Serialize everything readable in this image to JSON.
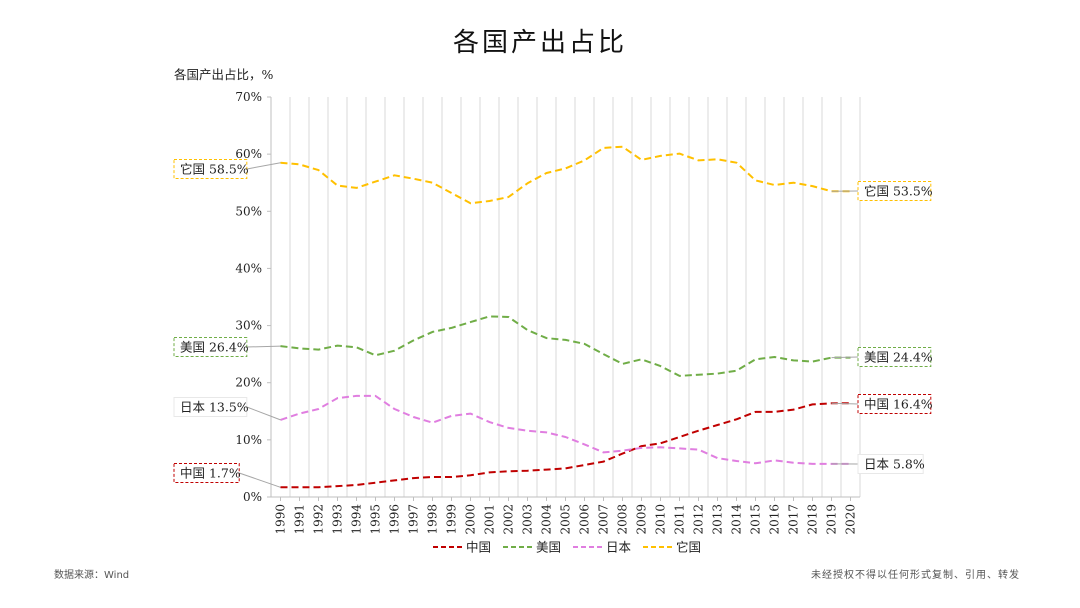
{
  "title": "各国产出占比",
  "y_unit_label": "各国产出占比，%",
  "source": "数据来源：Wind",
  "copyright": "未经授权不得以任何形式复制、引用、转发",
  "chart_data": {
    "type": "line",
    "title": "各国产出占比",
    "ylabel": "各国产出占比，%",
    "ylim": [
      0,
      70
    ],
    "y_ticks": [
      "0%",
      "10%",
      "20%",
      "30%",
      "40%",
      "50%",
      "60%",
      "70%"
    ],
    "x": [
      "1990",
      "1991",
      "1992",
      "1993",
      "1994",
      "1995",
      "1996",
      "1997",
      "1998",
      "1999",
      "2000",
      "2001",
      "2002",
      "2003",
      "2004",
      "2005",
      "2006",
      "2007",
      "2008",
      "2009",
      "2010",
      "2011",
      "2012",
      "2013",
      "2014",
      "2015",
      "2016",
      "2017",
      "2018",
      "2019",
      "2020"
    ],
    "grid": "vertical",
    "legend": "bottom",
    "series": [
      {
        "name": "中国",
        "color": "#c00000",
        "values": [
          1.7,
          1.7,
          1.7,
          1.9,
          2.1,
          2.5,
          2.9,
          3.3,
          3.5,
          3.5,
          3.8,
          4.3,
          4.5,
          4.6,
          4.8,
          5.0,
          5.6,
          6.2,
          7.6,
          8.9,
          9.4,
          10.5,
          11.6,
          12.6,
          13.6,
          14.9,
          14.9,
          15.3,
          16.2,
          16.4,
          16.4
        ]
      },
      {
        "name": "美国",
        "color": "#70ad47",
        "values": [
          26.4,
          26.0,
          25.8,
          26.5,
          26.2,
          24.8,
          25.6,
          27.4,
          28.9,
          29.6,
          30.6,
          31.6,
          31.5,
          29.2,
          27.8,
          27.5,
          26.8,
          25.0,
          23.3,
          24.1,
          22.9,
          21.2,
          21.4,
          21.6,
          22.1,
          24.1,
          24.5,
          23.9,
          23.7,
          24.4,
          24.4
        ]
      },
      {
        "name": "日本",
        "color": "#e07ee0",
        "values": [
          13.5,
          14.6,
          15.4,
          17.3,
          17.7,
          17.7,
          15.4,
          14.0,
          13.0,
          14.2,
          14.6,
          13.1,
          12.1,
          11.6,
          11.3,
          10.5,
          9.2,
          7.8,
          8.1,
          8.6,
          8.7,
          8.5,
          8.3,
          6.8,
          6.3,
          5.9,
          6.4,
          6.0,
          5.8,
          5.8,
          5.8
        ]
      },
      {
        "name": "它国",
        "color": "#ffc000",
        "values": [
          58.5,
          58.2,
          57.2,
          54.5,
          54.1,
          55.2,
          56.3,
          55.7,
          55.0,
          53.2,
          51.4,
          51.8,
          52.5,
          54.9,
          56.7,
          57.5,
          58.9,
          61.1,
          61.3,
          59.0,
          59.7,
          60.1,
          58.9,
          59.1,
          58.5,
          55.4,
          54.6,
          55.0,
          54.4,
          53.5,
          53.5
        ]
      }
    ],
    "annotations": [
      {
        "text": "它国 58.5%"
      },
      {
        "text": "美国 26.4%"
      },
      {
        "text": "日本 13.5%"
      },
      {
        "text": "中国 1.7%"
      },
      {
        "text": "它国 53.5%"
      },
      {
        "text": "美国 24.4%"
      },
      {
        "text": "中国 16.4%"
      },
      {
        "text": "日本 5.8%"
      }
    ]
  }
}
